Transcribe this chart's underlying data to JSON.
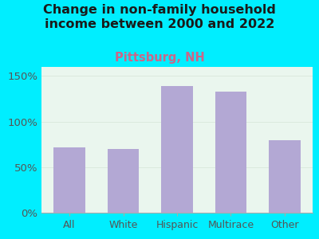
{
  "title": "Change in non-family household\nincome between 2000 and 2022",
  "subtitle": "Pittsburg, NH",
  "categories": [
    "All",
    "White",
    "Hispanic",
    "Multirace",
    "Other"
  ],
  "values": [
    72,
    70,
    139,
    133,
    80
  ],
  "bar_color": "#b3a8d4",
  "title_fontsize": 11.5,
  "subtitle_fontsize": 10.5,
  "subtitle_color": "#cc6688",
  "title_color": "#1a1a1a",
  "background_outer": "#00eeff",
  "background_inner_topleft": "#d8f0e0",
  "background_inner_bottomright": "#f5fcf8",
  "ylim": [
    0,
    160
  ],
  "yticks": [
    0,
    50,
    100,
    150
  ],
  "grid_color": "#dddddd",
  "xlabel_fontsize": 9,
  "tick_label_color": "#555555",
  "ytick_label_color": "#555555"
}
